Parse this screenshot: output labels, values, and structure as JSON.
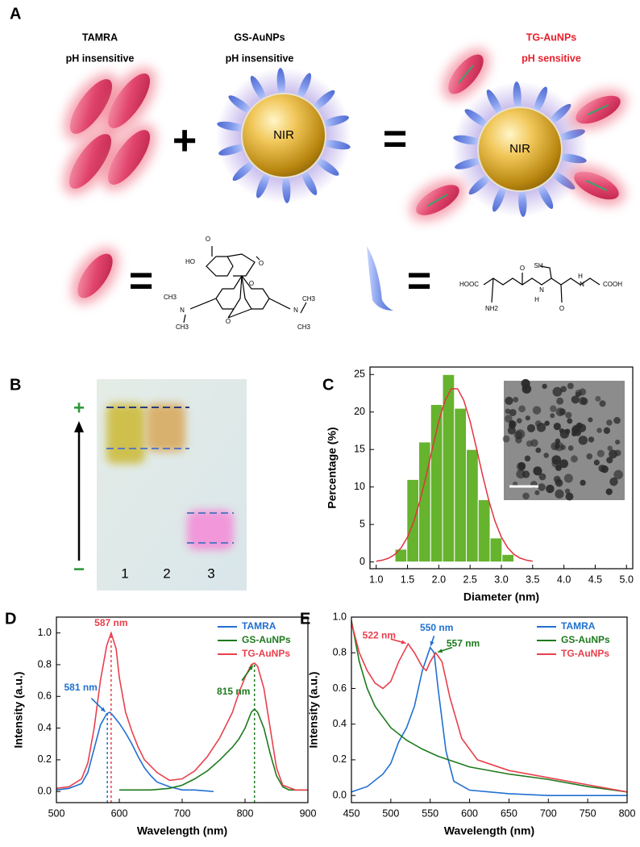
{
  "panel_a": {
    "label": "A",
    "items": [
      {
        "name": "TAMRA",
        "note": "pH insensitive"
      },
      {
        "name": "GS-AuNPs",
        "note": "pH insensitive"
      },
      {
        "name": "TG-AuNPs",
        "note": "pH sensitive"
      }
    ],
    "core_labels": [
      "NIR",
      "NIR"
    ],
    "operators": [
      "+",
      "="
    ],
    "legend_operators": [
      "=",
      "="
    ],
    "tamra_atoms": [
      "O",
      "HO",
      "O",
      "O",
      "O",
      "N",
      "CH3",
      "CH3",
      "N",
      "CH3",
      "CH3"
    ],
    "gsh_atoms": [
      "SH",
      "HOOC",
      "NH2",
      "O",
      "H",
      "N",
      "O",
      "H",
      "N",
      "COOH"
    ]
  },
  "panel_b": {
    "label": "B",
    "plus": "+",
    "minus": "−",
    "lanes": [
      "1",
      "2",
      "3"
    ]
  },
  "chart_data": [
    {
      "type": "histogram",
      "panel": "C",
      "xlabel": "Diameter (nm)",
      "ylabel": "Percentage (%)",
      "bins": [
        1.3,
        1.49,
        1.68,
        1.87,
        2.06,
        2.25,
        2.44,
        2.63,
        2.82,
        3.01,
        3.2
      ],
      "values": [
        1.7,
        11,
        16,
        21,
        25,
        20.5,
        15,
        8.3,
        3.2,
        1
      ],
      "color": "#66b32e",
      "fit": {
        "color": "#e0353f",
        "x": [
          1.0,
          1.1,
          1.2,
          1.3,
          1.4,
          1.5,
          1.6,
          1.7,
          1.8,
          1.9,
          2.0,
          2.1,
          2.2,
          2.3,
          2.4,
          2.5,
          2.6,
          2.7,
          2.8,
          2.9,
          3.0,
          3.1,
          3.2,
          3.3,
          3.4,
          3.5
        ],
        "values": [
          0.1,
          0.24,
          0.51,
          1.02,
          1.91,
          3.32,
          5.4,
          8.18,
          11.56,
          15.25,
          18.77,
          21.55,
          23.1,
          23.1,
          21.55,
          18.77,
          15.25,
          11.56,
          8.18,
          5.4,
          3.32,
          1.91,
          1.02,
          0.51,
          0.24,
          0.1
        ]
      },
      "xlim": [
        0.9,
        5.1
      ],
      "xticks": [
        {
          "value": 1,
          "label": "1.0"
        },
        {
          "value": 1.5,
          "label": "1.5"
        },
        {
          "value": 2,
          "label": "2.0"
        },
        {
          "value": 2.5,
          "label": "2.5"
        },
        {
          "value": 3,
          "label": "3.0"
        },
        {
          "value": 3.5,
          "label": "3.5"
        },
        {
          "value": 4,
          "label": "4.0"
        },
        {
          "value": 4.5,
          "label": "4.5"
        },
        {
          "value": 5,
          "label": "5.0"
        }
      ],
      "ylim": [
        -0.9,
        26
      ],
      "yticks": [
        0,
        5,
        10,
        15,
        20,
        25
      ]
    },
    {
      "type": "line",
      "panel": "D",
      "xlabel": "Wavelength (nm)",
      "ylabel": "Intensity (a.u.)",
      "legend": "upper right",
      "drop_lines": true,
      "series": [
        {
          "name": "TAMRA",
          "color": "#2070d0",
          "x": [
            500,
            520,
            540,
            550,
            560,
            570,
            580,
            585,
            590,
            600,
            610,
            620,
            630,
            640,
            650,
            660,
            680,
            700,
            720,
            750
          ],
          "values": [
            0.01,
            0.02,
            0.05,
            0.12,
            0.27,
            0.42,
            0.49,
            0.5,
            0.48,
            0.43,
            0.37,
            0.3,
            0.22,
            0.15,
            0.1,
            0.06,
            0.03,
            0.01,
            0.01,
            0.0
          ]
        },
        {
          "name": "GS-AuNPs",
          "color": "#1e7a1e",
          "x": [
            600,
            650,
            680,
            700,
            720,
            740,
            760,
            780,
            790,
            800,
            810,
            815,
            820,
            830,
            840,
            850,
            860,
            870,
            900
          ],
          "values": [
            0.01,
            0.01,
            0.02,
            0.04,
            0.08,
            0.13,
            0.2,
            0.28,
            0.33,
            0.4,
            0.5,
            0.52,
            0.5,
            0.4,
            0.24,
            0.1,
            0.03,
            0.01,
            0.01
          ]
        },
        {
          "name": "TG-AuNPs",
          "color": "#e8404c",
          "x": [
            500,
            520,
            540,
            550,
            560,
            570,
            580,
            587,
            595,
            600,
            610,
            620,
            630,
            640,
            660,
            680,
            700,
            720,
            740,
            760,
            780,
            790,
            800,
            810,
            815,
            820,
            830,
            840,
            850,
            860,
            880,
            900
          ],
          "values": [
            0.02,
            0.03,
            0.08,
            0.18,
            0.4,
            0.7,
            0.92,
            1.0,
            0.9,
            0.72,
            0.5,
            0.38,
            0.28,
            0.2,
            0.12,
            0.07,
            0.08,
            0.13,
            0.22,
            0.34,
            0.5,
            0.62,
            0.72,
            0.8,
            0.81,
            0.79,
            0.65,
            0.4,
            0.15,
            0.04,
            0.01,
            0.01
          ]
        }
      ],
      "annotations": [
        {
          "text": "587 nm",
          "x": 587,
          "y": 1.0,
          "color": "#e8404c"
        },
        {
          "text": "581 nm",
          "x": 581,
          "y": 0.49,
          "color": "#2070d0"
        },
        {
          "text": "815 nm",
          "x": 815,
          "y": 0.81,
          "color": "#1e7a1e"
        }
      ],
      "xlim": [
        500,
        900
      ],
      "xticks": [
        500,
        600,
        700,
        800,
        900
      ],
      "ylim": [
        -0.07,
        1.1
      ],
      "yticks": [
        {
          "value": 0,
          "label": "0.0"
        },
        {
          "value": 0.2,
          "label": "0.2"
        },
        {
          "value": 0.4,
          "label": "0.4"
        },
        {
          "value": 0.6,
          "label": "0.6"
        },
        {
          "value": 0.8,
          "label": "0.8"
        },
        {
          "value": 1,
          "label": "1.0"
        }
      ]
    },
    {
      "type": "line",
      "panel": "E",
      "xlabel": "Wavelength (nm)",
      "ylabel": "Intensity (a.u.)",
      "legend": "upper right",
      "drop_lines": false,
      "series": [
        {
          "name": "TAMRA",
          "color": "#2070d0",
          "x": [
            450,
            470,
            490,
            500,
            510,
            520,
            530,
            540,
            550,
            555,
            560,
            570,
            580,
            600,
            650,
            700,
            800
          ],
          "values": [
            0.02,
            0.05,
            0.12,
            0.18,
            0.3,
            0.38,
            0.5,
            0.7,
            0.83,
            0.8,
            0.6,
            0.25,
            0.08,
            0.03,
            0.01,
            0.0,
            0.0
          ]
        },
        {
          "name": "GS-AuNPs",
          "color": "#1e7a1e",
          "x": [
            450,
            460,
            470,
            480,
            500,
            520,
            540,
            560,
            580,
            600,
            650,
            700,
            750,
            800
          ],
          "values": [
            0.98,
            0.75,
            0.6,
            0.5,
            0.38,
            0.31,
            0.26,
            0.22,
            0.19,
            0.16,
            0.12,
            0.09,
            0.05,
            0.02
          ]
        },
        {
          "name": "TG-AuNPs",
          "color": "#e8404c",
          "x": [
            450,
            460,
            470,
            480,
            490,
            500,
            510,
            522,
            530,
            540,
            545,
            550,
            557,
            565,
            575,
            590,
            610,
            650,
            700,
            750,
            800
          ],
          "values": [
            0.97,
            0.8,
            0.7,
            0.63,
            0.6,
            0.64,
            0.75,
            0.85,
            0.8,
            0.72,
            0.7,
            0.75,
            0.8,
            0.75,
            0.55,
            0.32,
            0.2,
            0.14,
            0.1,
            0.06,
            0.02
          ]
        }
      ],
      "annotations": [
        {
          "text": "522 nm",
          "x": 522,
          "y": 0.85,
          "color": "#e8404c"
        },
        {
          "text": "550 nm",
          "x": 550,
          "y": 0.83,
          "color": "#2070d0"
        },
        {
          "text": "557 nm",
          "x": 557,
          "y": 0.8,
          "color": "#1e7a1e"
        }
      ],
      "xlim": [
        450,
        800
      ],
      "xticks": [
        450,
        500,
        550,
        600,
        650,
        700,
        750,
        800
      ],
      "ylim": [
        -0.04,
        1.0
      ],
      "yticks": [
        {
          "value": 0,
          "label": "0.0"
        },
        {
          "value": 0.2,
          "label": "0.2"
        },
        {
          "value": 0.4,
          "label": "0.4"
        },
        {
          "value": 0.6,
          "label": "0.6"
        },
        {
          "value": 0.8,
          "label": "0.8"
        },
        {
          "value": 1,
          "label": "1.0"
        }
      ]
    }
  ]
}
